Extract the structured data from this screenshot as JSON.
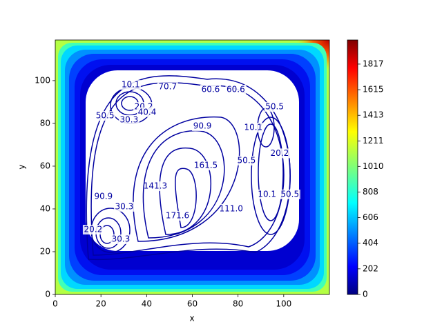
{
  "chart_data": {
    "type": "contour",
    "xlabel": "x",
    "ylabel": "y",
    "xlim": [
      0,
      120
    ],
    "ylim": [
      0,
      119
    ],
    "xticks": [
      0,
      20,
      40,
      60,
      80,
      100
    ],
    "yticks": [
      0,
      20,
      40,
      60,
      80,
      100
    ],
    "clim": [
      0,
      2007
    ],
    "cticks": [
      0,
      202,
      404,
      606,
      808,
      1010,
      1211,
      1413,
      1615,
      1817
    ],
    "colormap": "jet",
    "contour_color": "#0000a0",
    "contour_labels": {
      "x": [
        33,
        38.7,
        32.3,
        40.2,
        21.8,
        49.2,
        68,
        79,
        96,
        86.7,
        64.4,
        98.2,
        83.7,
        65.9,
        43.8,
        92.7,
        102.7,
        77,
        53.5,
        21.1,
        30.2,
        16.6,
        28.7
      ],
      "y": [
        98,
        87.7,
        81.6,
        85.2,
        83.5,
        97,
        95.8,
        95.8,
        87.7,
        78,
        78.7,
        66,
        62.6,
        60.3,
        50.6,
        46.8,
        46.8,
        40,
        36.8,
        45.8,
        41,
        30.3,
        25.8
      ],
      "values": [
        10.1,
        20.2,
        30.3,
        40.4,
        50.5,
        70.7,
        60.6,
        60.6,
        50.5,
        10.1,
        90.9,
        20.2,
        50.5,
        161.5,
        141.3,
        10.1,
        50.5,
        111.0,
        171.6,
        90.9,
        30.3,
        20.2,
        30.3
      ],
      "value_labels": [
        "10.1",
        "20.2",
        "30.3",
        "40.4",
        "50.5",
        "70.7",
        "60.6",
        "60.6",
        "50.5",
        "10.1",
        "90.9",
        "20.2",
        "50.5",
        "161.5",
        "141.3",
        "10.1",
        "50.5",
        "111.0",
        "171.6",
        "90.9",
        "30.3",
        "20.2",
        "30.3"
      ]
    }
  }
}
